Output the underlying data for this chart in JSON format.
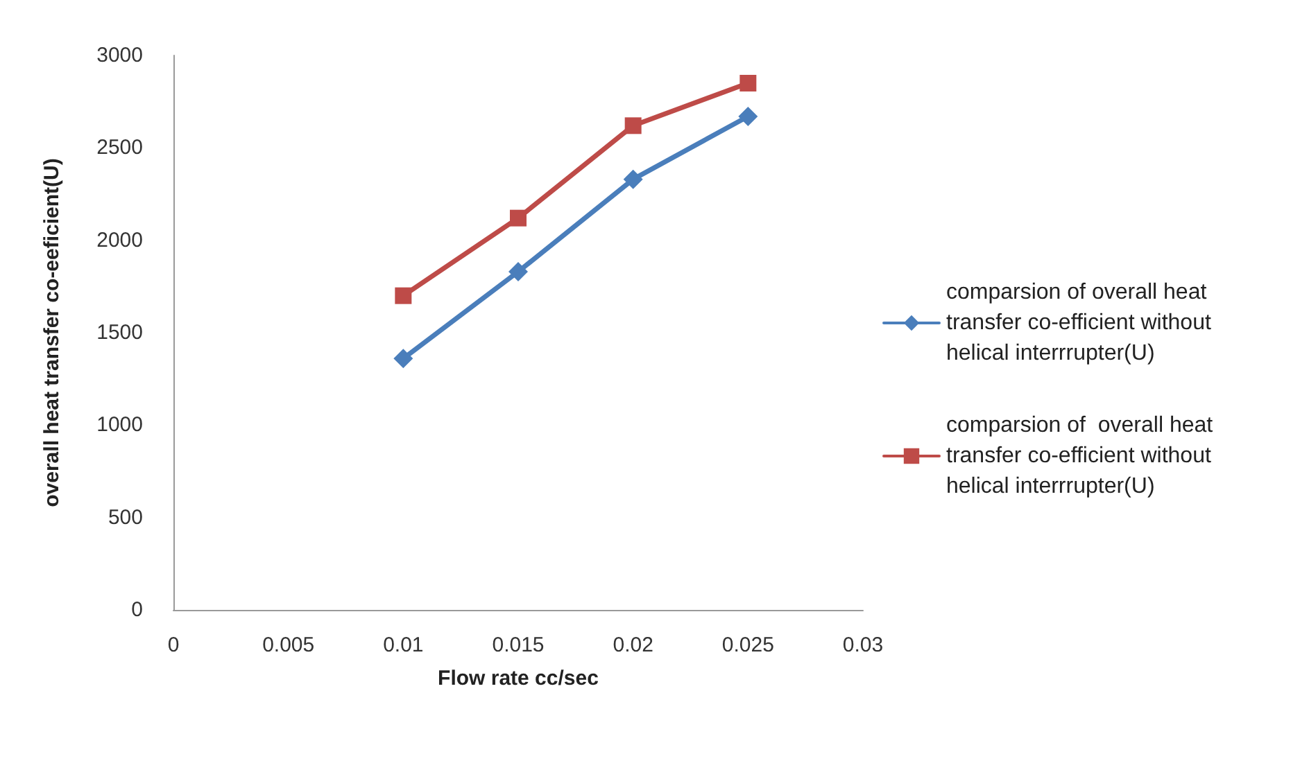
{
  "chart_data": {
    "type": "line",
    "xlabel": "Flow rate cc/sec",
    "ylabel": "overall heat transfer co-eeficient(U)",
    "x": [
      0.01,
      0.015,
      0.02,
      0.025
    ],
    "series": [
      {
        "name": "comparsion of overall heat transfer co-efficient without helical interrrupter(U)",
        "color": "#4a7ebb",
        "marker": "diamond",
        "values": [
          1360,
          1830,
          2330,
          2670
        ]
      },
      {
        "name": "comparsion of  overall heat transfer co-efficient without helical interrrupter(U)",
        "color": "#be4b48",
        "marker": "square",
        "values": [
          1700,
          2120,
          2620,
          2850
        ]
      }
    ],
    "xlim": [
      0,
      0.03
    ],
    "xticks": [
      0,
      0.005,
      0.01,
      0.015,
      0.02,
      0.025,
      0.03
    ],
    "ylim": [
      0,
      3000
    ],
    "yticks": [
      0,
      500,
      1000,
      1500,
      2000,
      2500,
      3000
    ],
    "grid": false,
    "legend": "right",
    "line_style": "solid"
  }
}
